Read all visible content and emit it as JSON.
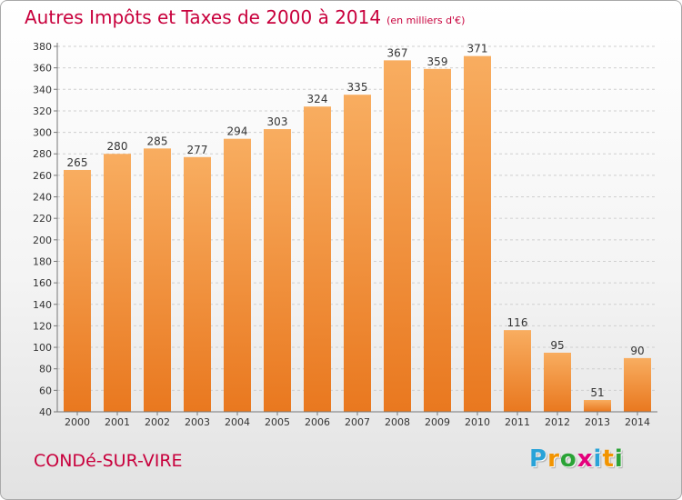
{
  "title": "Autres Impôts et Taxes de 2000 à 2014",
  "subtitle": "(en milliers d'€)",
  "commune": "CONDé-SUR-VIRE",
  "logo": {
    "letters": [
      "P",
      "r",
      "o",
      "x",
      "i",
      "t",
      "i"
    ],
    "colors": [
      "#29a3d8",
      "#f29400",
      "#2aa336",
      "#e4007c",
      "#29a3d8",
      "#f29400",
      "#2aa336"
    ]
  },
  "colors": {
    "bar_light": "#f8ad60",
    "bar_dark": "#e9781f",
    "title": "#c8003c",
    "grid": "#cfcfcf",
    "axis_text": "#333333"
  },
  "chart_data": {
    "type": "bar",
    "categories": [
      "2000",
      "2001",
      "2002",
      "2003",
      "2004",
      "2005",
      "2006",
      "2007",
      "2008",
      "2009",
      "2010",
      "2011",
      "2012",
      "2013",
      "2014"
    ],
    "values": [
      265,
      280,
      285,
      277,
      294,
      303,
      324,
      335,
      367,
      359,
      371,
      116,
      95,
      51,
      90
    ],
    "ylim": [
      40,
      380
    ],
    "yticks": [
      40,
      60,
      80,
      100,
      120,
      140,
      160,
      180,
      200,
      220,
      240,
      260,
      280,
      300,
      320,
      340,
      360,
      380
    ],
    "grid": true,
    "xlabel": "",
    "ylabel": ""
  }
}
